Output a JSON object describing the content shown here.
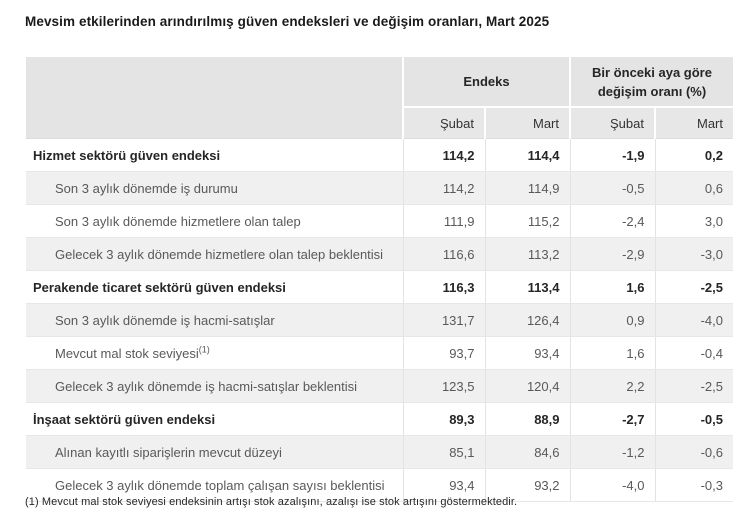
{
  "title": "Mevsim etkilerinden arındırılmış güven endeksleri ve değişim oranları, Mart 2025",
  "table": {
    "col_groups": [
      {
        "label": "Endeks"
      },
      {
        "label": "Bir önceki aya göre değişim oranı (%)"
      }
    ],
    "sub_headers": [
      "Şubat",
      "Mart",
      "Şubat",
      "Mart"
    ],
    "rows": [
      {
        "type": "section",
        "label": "Hizmet sektörü güven endeksi",
        "values": [
          "114,2",
          "114,4",
          "-1,9",
          "0,2"
        ]
      },
      {
        "type": "sub",
        "label": "Son 3 aylık dönemde iş durumu",
        "values": [
          "114,2",
          "114,9",
          "-0,5",
          "0,6"
        ]
      },
      {
        "type": "sub",
        "label": "Son 3 aylık dönemde hizmetlere olan talep",
        "values": [
          "111,9",
          "115,2",
          "-2,4",
          "3,0"
        ]
      },
      {
        "type": "sub",
        "label": "Gelecek 3 aylık dönemde hizmetlere olan talep beklentisi",
        "values": [
          "116,6",
          "113,2",
          "-2,9",
          "-3,0"
        ]
      },
      {
        "type": "section",
        "label": "Perakende ticaret sektörü güven endeksi",
        "values": [
          "116,3",
          "113,4",
          "1,6",
          "-2,5"
        ]
      },
      {
        "type": "sub",
        "label": "Son 3 aylık dönemde iş hacmi-satışlar",
        "values": [
          "131,7",
          "126,4",
          "0,9",
          "-4,0"
        ]
      },
      {
        "type": "sub",
        "label": "Mevcut mal stok seviyesi",
        "sup": "(1)",
        "values": [
          "93,7",
          "93,4",
          "1,6",
          "-0,4"
        ]
      },
      {
        "type": "sub",
        "label": "Gelecek 3 aylık dönemde iş hacmi-satışlar beklentisi",
        "values": [
          "123,5",
          "120,4",
          "2,2",
          "-2,5"
        ]
      },
      {
        "type": "section",
        "label": "İnşaat sektörü güven endeksi",
        "values": [
          "89,3",
          "88,9",
          "-2,7",
          "-0,5"
        ]
      },
      {
        "type": "sub",
        "label": "Alınan kayıtlı siparişlerin mevcut düzeyi",
        "values": [
          "85,1",
          "84,6",
          "-1,2",
          "-0,6"
        ]
      },
      {
        "type": "sub",
        "label": "Gelecek 3 aylık dönemde toplam çalışan sayısı beklentisi",
        "values": [
          "93,4",
          "93,2",
          "-4,0",
          "-0,3"
        ]
      }
    ]
  },
  "footnote": "(1) Mevcut mal stok seviyesi endeksinin artışı stok azalışını, azalışı ise stok artışını göstermektedir.",
  "colors": {
    "header_bg": "#e4e4e4",
    "subheader_bg": "#e7e7e7",
    "row_alt_bg": "#f0f0f0",
    "border": "#e3e3e3",
    "text_primary": "#262626",
    "text_secondary": "#595959"
  }
}
